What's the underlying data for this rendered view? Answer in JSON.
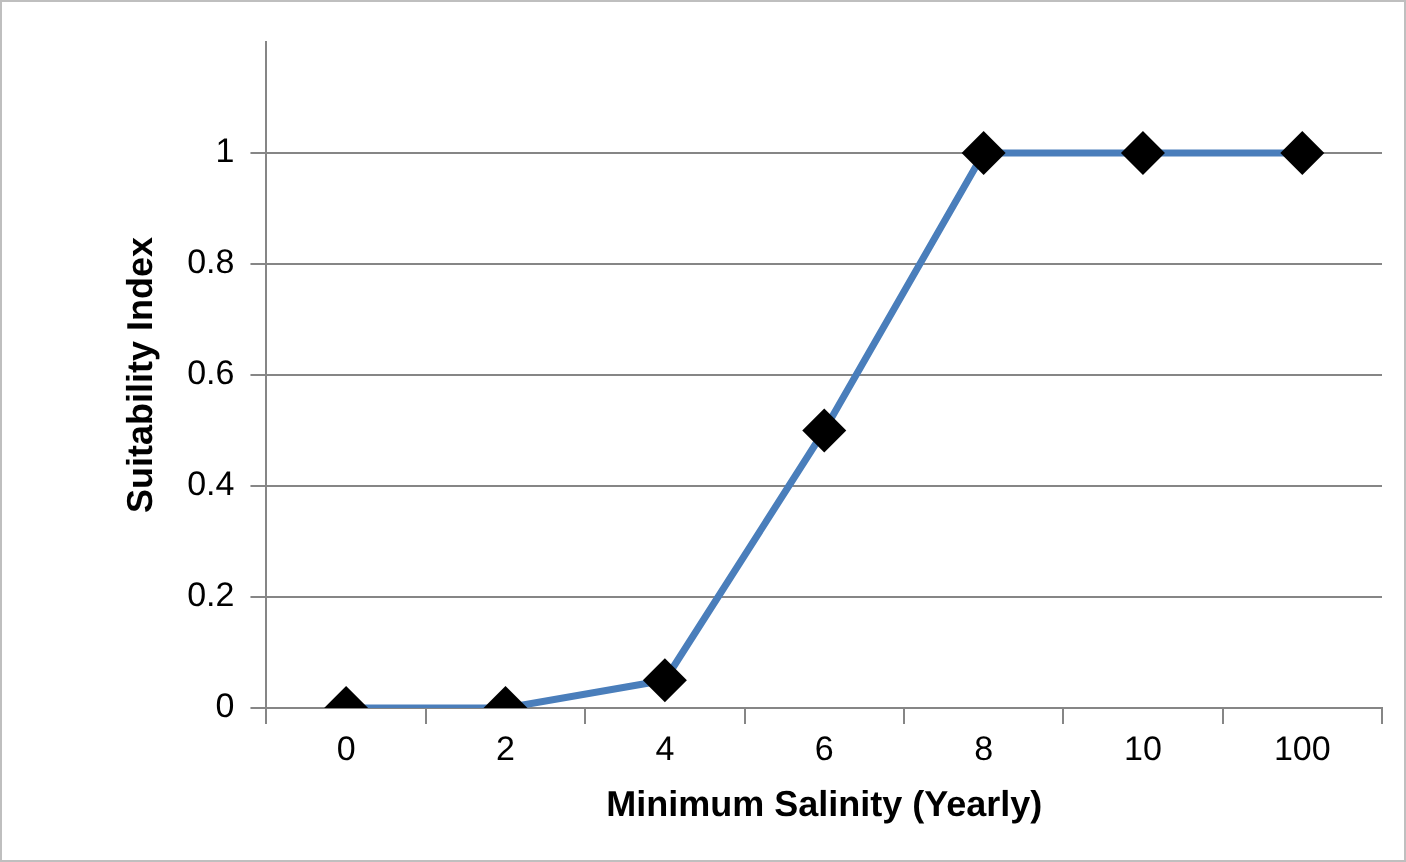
{
  "chart_data": {
    "type": "line",
    "xlabel": "Minimum Salinity (Yearly)",
    "ylabel": "Suitability Index",
    "categories": [
      "0",
      "2",
      "4",
      "6",
      "8",
      "10",
      "100"
    ],
    "series": [
      {
        "color": "#4a7ebb",
        "values": [
          0,
          0,
          0.05,
          0.5,
          1,
          1,
          1
        ]
      }
    ],
    "ylim": [
      0,
      1.2
    ],
    "yticks": [
      0,
      0.2,
      0.4,
      0.6,
      0.8,
      1
    ],
    "grid": "y",
    "legend": false,
    "marker": "diamond"
  }
}
